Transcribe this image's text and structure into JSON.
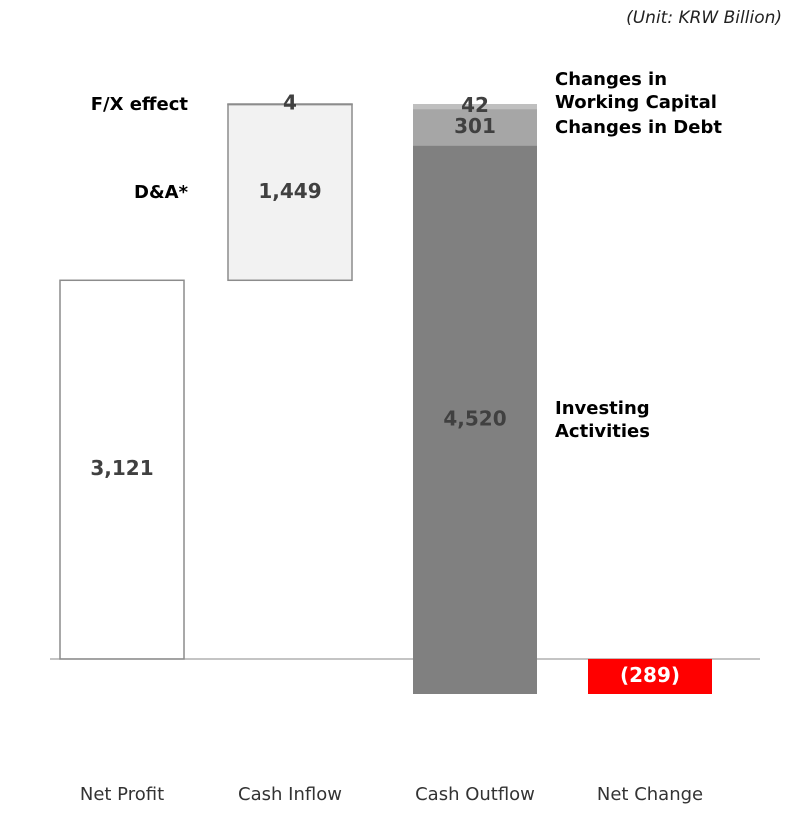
{
  "chart_data": {
    "type": "waterfall",
    "subtitle": "(Unit: KRW Billion)",
    "categories": [
      "Net Profit",
      "Cash Inflow",
      "Cash Outflow",
      "Net Change"
    ],
    "kinds": [
      "total",
      "increase",
      "decrease",
      "total"
    ],
    "segments": [
      [
        {
          "value": 3121,
          "value_label": "3,121",
          "color": "#ffffff",
          "border": "#8c8c8c",
          "label_color": "#404040"
        }
      ],
      [
        {
          "name": "D&A*",
          "value": 1449,
          "value_label": "1,449",
          "color": "#f2f2f2",
          "border": "#8c8c8c",
          "label_color": "#404040"
        },
        {
          "name": "F/X effect",
          "value": 4,
          "value_label": "4",
          "color": "#f2f2f2",
          "border": "#8c8c8c",
          "label_color": "#404040"
        }
      ],
      [
        {
          "name": "Changes in Working Capital",
          "value": 42,
          "value_label": "42",
          "color": "#bfbfbf",
          "label_color": "#404040"
        },
        {
          "name": "Changes in Debt",
          "value": 301,
          "value_label": "301",
          "color": "#a6a6a6",
          "label_color": "#404040"
        },
        {
          "name": "Investing Activities",
          "value": 4520,
          "value_label": "4,520",
          "color": "#808080",
          "label_color": "#404040"
        }
      ],
      [
        {
          "value": -289,
          "value_label": "(289)",
          "color": "#ff0000",
          "label_color": "#ffffff"
        }
      ]
    ]
  }
}
